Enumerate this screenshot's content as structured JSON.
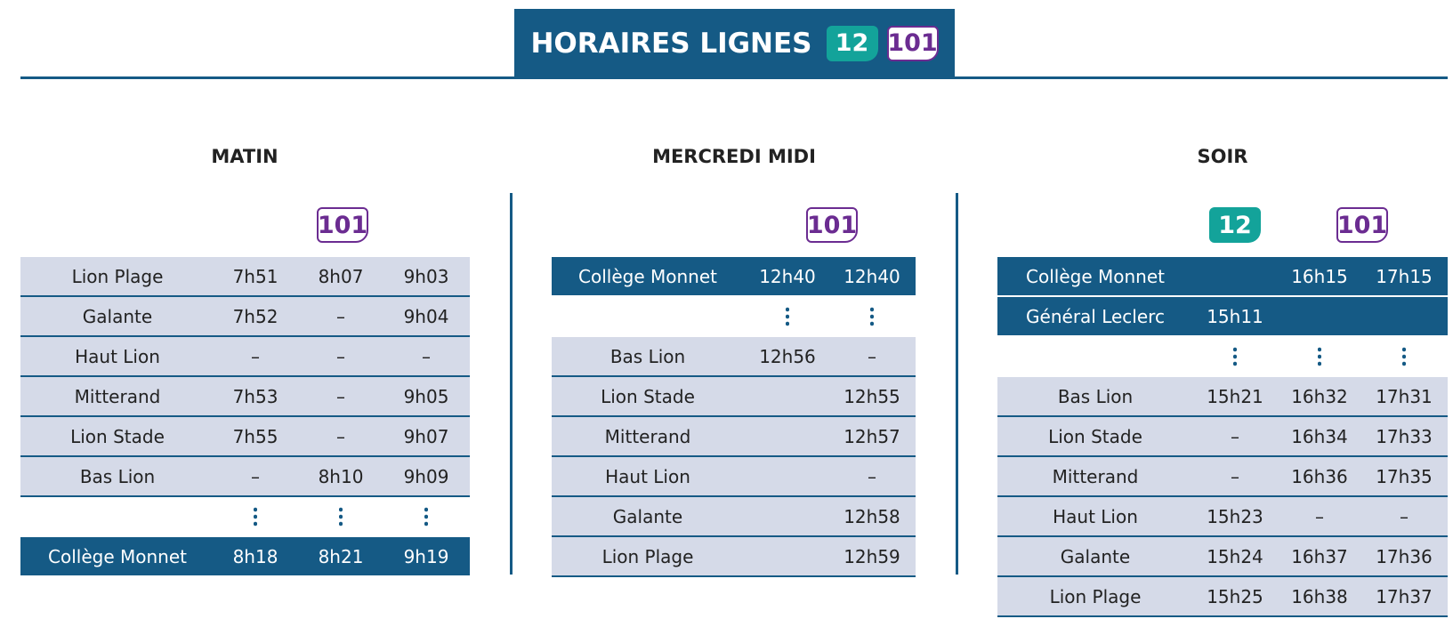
{
  "header": {
    "title": "HORAIRES LIGNES",
    "lines": [
      "12",
      "101"
    ]
  },
  "sections": [
    {
      "title": "MATIN",
      "lines": [
        "101"
      ],
      "rows": [
        {
          "stop": "Lion Plage",
          "times": [
            "7h51",
            "8h07",
            "9h03"
          ]
        },
        {
          "stop": "Galante",
          "times": [
            "7h52",
            "–",
            "9h04"
          ]
        },
        {
          "stop": "Haut Lion",
          "times": [
            "–",
            "–",
            "–"
          ]
        },
        {
          "stop": "Mitterand",
          "times": [
            "7h53",
            "–",
            "9h05"
          ]
        },
        {
          "stop": "Lion Stade",
          "times": [
            "7h55",
            "–",
            "9h07"
          ]
        },
        {
          "stop": "Bas Lion",
          "times": [
            "–",
            "8h10",
            "9h09"
          ]
        },
        {
          "stop": "Collège Monnet",
          "times": [
            "8h18",
            "8h21",
            "9h19"
          ]
        }
      ]
    },
    {
      "title": "MERCREDI MIDI",
      "lines": [
        "101"
      ],
      "rows": [
        {
          "stop": "Collège Monnet",
          "times": [
            "12h40",
            "12h40"
          ]
        },
        {
          "stop": "Bas Lion",
          "times": [
            "12h56",
            "–"
          ]
        },
        {
          "stop": "Lion Stade",
          "times": [
            null,
            "12h55"
          ]
        },
        {
          "stop": "Mitterand",
          "times": [
            null,
            "12h57"
          ]
        },
        {
          "stop": "Haut Lion",
          "times": [
            null,
            "–"
          ]
        },
        {
          "stop": "Galante",
          "times": [
            null,
            "12h58"
          ]
        },
        {
          "stop": "Lion Plage",
          "times": [
            null,
            "12h59"
          ]
        }
      ]
    },
    {
      "title": "SOIR",
      "lines": [
        "12",
        "101"
      ],
      "rows": [
        {
          "stop": "Collège Monnet",
          "times": [
            null,
            "16h15",
            "17h15"
          ]
        },
        {
          "stop": "Général Leclerc",
          "times": [
            "15h11",
            null,
            null
          ]
        },
        {
          "stop": "Bas Lion",
          "times": [
            "15h21",
            "16h32",
            "17h31"
          ]
        },
        {
          "stop": "Lion Stade",
          "times": [
            "–",
            "16h34",
            "17h33"
          ]
        },
        {
          "stop": "Mitterand",
          "times": [
            "–",
            "16h36",
            "17h35"
          ]
        },
        {
          "stop": "Haut Lion",
          "times": [
            "15h23",
            "–",
            "–"
          ]
        },
        {
          "stop": "Galante",
          "times": [
            "15h24",
            "16h37",
            "17h36"
          ]
        },
        {
          "stop": "Lion Plage",
          "times": [
            "15h25",
            "16h38",
            "17h37"
          ]
        }
      ]
    }
  ]
}
